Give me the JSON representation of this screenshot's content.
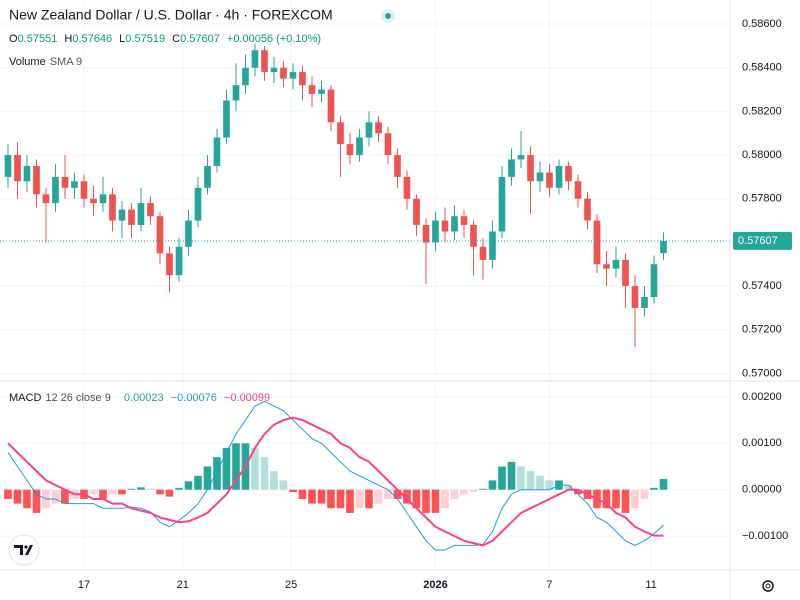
{
  "chart_data": {
    "type": "candlestick",
    "title": "New Zealand Dollar / U.S. Dollar · 4h · FOREXCOM",
    "ohlc_letters": [
      "O",
      "H",
      "L",
      "C"
    ],
    "change": "+0.00056 (+0.10%)",
    "volume_label": "Volume",
    "volume_sma": "SMA 9",
    "up_color": "#26a69a",
    "down_color": "#ef5350",
    "grid": true,
    "open": [
      0.579,
      0.58,
      0.5788,
      0.5795,
      0.5782,
      0.5778,
      0.579,
      0.5785,
      0.5788,
      0.578,
      0.5778,
      0.5782,
      0.577,
      0.5775,
      0.5768,
      0.5778,
      0.5772,
      0.5755,
      0.5745,
      0.5758,
      0.577,
      0.5785,
      0.5795,
      0.5808,
      0.5825,
      0.5832,
      0.584,
      0.5848,
      0.5838,
      0.584,
      0.5835,
      0.5838,
      0.5832,
      0.5828,
      0.583,
      0.5815,
      0.5805,
      0.58,
      0.5808,
      0.5815,
      0.581,
      0.58,
      0.579,
      0.578,
      0.5768,
      0.576,
      0.577,
      0.5765,
      0.5772,
      0.5768,
      0.5758,
      0.5752,
      0.5765,
      0.579,
      0.5798,
      0.58,
      0.5788,
      0.5792,
      0.5785,
      0.5795,
      0.5788,
      0.578,
      0.577,
      0.575,
      0.5748,
      0.5752,
      0.574,
      0.573,
      0.5735,
      0.57551
    ],
    "high": [
      0.5805,
      0.5806,
      0.58,
      0.5798,
      0.5785,
      0.5796,
      0.58,
      0.5792,
      0.5791,
      0.5786,
      0.579,
      0.5785,
      0.5779,
      0.5778,
      0.5785,
      0.5781,
      0.5774,
      0.5758,
      0.5762,
      0.5775,
      0.579,
      0.58,
      0.5812,
      0.583,
      0.5842,
      0.5846,
      0.5851,
      0.585,
      0.5845,
      0.5843,
      0.5842,
      0.5841,
      0.5836,
      0.5834,
      0.5832,
      0.5818,
      0.581,
      0.5812,
      0.582,
      0.5818,
      0.5813,
      0.5803,
      0.5793,
      0.5782,
      0.5771,
      0.5774,
      0.5776,
      0.5777,
      0.5775,
      0.577,
      0.5762,
      0.577,
      0.5795,
      0.5803,
      0.5811,
      0.5804,
      0.5797,
      0.5796,
      0.5798,
      0.5797,
      0.5791,
      0.5783,
      0.5773,
      0.5756,
      0.5758,
      0.5755,
      0.5745,
      0.574,
      0.5754,
      0.57646
    ],
    "low": [
      0.5785,
      0.578,
      0.5783,
      0.5776,
      0.576,
      0.5774,
      0.578,
      0.578,
      0.5776,
      0.5772,
      0.5774,
      0.5765,
      0.5762,
      0.5762,
      0.5765,
      0.5768,
      0.575,
      0.5737,
      0.5742,
      0.5754,
      0.5767,
      0.5782,
      0.5792,
      0.5805,
      0.582,
      0.5828,
      0.5836,
      0.5834,
      0.5833,
      0.5831,
      0.583,
      0.5825,
      0.5822,
      0.5824,
      0.5811,
      0.579,
      0.5796,
      0.5797,
      0.5804,
      0.5806,
      0.5796,
      0.5785,
      0.5775,
      0.5763,
      0.5741,
      0.5756,
      0.576,
      0.5761,
      0.5762,
      0.5745,
      0.5743,
      0.5748,
      0.5762,
      0.5786,
      0.5794,
      0.5773,
      0.5783,
      0.5781,
      0.5782,
      0.5784,
      0.5776,
      0.5766,
      0.5746,
      0.574,
      0.5744,
      0.573,
      0.5712,
      0.5726,
      0.5732,
      0.57519
    ],
    "close": [
      0.58,
      0.5788,
      0.5795,
      0.5782,
      0.5778,
      0.579,
      0.5785,
      0.5788,
      0.578,
      0.5778,
      0.5782,
      0.577,
      0.5775,
      0.5768,
      0.5778,
      0.5772,
      0.5755,
      0.5745,
      0.5758,
      0.577,
      0.5785,
      0.5795,
      0.5808,
      0.5825,
      0.5832,
      0.584,
      0.5848,
      0.5838,
      0.584,
      0.5835,
      0.5838,
      0.5832,
      0.5828,
      0.583,
      0.5815,
      0.5805,
      0.58,
      0.5808,
      0.5815,
      0.581,
      0.58,
      0.579,
      0.578,
      0.5768,
      0.576,
      0.577,
      0.5765,
      0.5772,
      0.5768,
      0.5758,
      0.5752,
      0.5765,
      0.579,
      0.5798,
      0.58,
      0.5788,
      0.5792,
      0.5785,
      0.5795,
      0.5788,
      0.578,
      0.577,
      0.575,
      0.5748,
      0.5752,
      0.574,
      0.573,
      0.5735,
      0.575,
      0.57607
    ],
    "ylim": [
      0.5697,
      0.5871
    ],
    "yticks": [
      {
        "value": 0.586,
        "label": "0.58600"
      },
      {
        "value": 0.584,
        "label": "0.58400"
      },
      {
        "value": 0.582,
        "label": "0.58200"
      },
      {
        "value": 0.58,
        "label": "0.58000"
      },
      {
        "value": 0.578,
        "label": "0.57800"
      },
      {
        "value": 0.576,
        "label": "0.57600"
      },
      {
        "value": 0.574,
        "label": "0.57400"
      },
      {
        "value": 0.572,
        "label": "0.57200"
      },
      {
        "value": 0.57,
        "label": "0.57000"
      }
    ],
    "xlim": [
      -0.84,
      76
    ],
    "xticks": [
      {
        "value": 8,
        "label": "17"
      },
      {
        "value": 18.4,
        "label": "21"
      },
      {
        "value": 29.8,
        "label": "25"
      },
      {
        "value": 45,
        "label": "2026"
      },
      {
        "value": 57,
        "label": "7"
      },
      {
        "value": 67.7,
        "label": "11"
      }
    ],
    "macd": {
      "label": "MACD",
      "params": "12 26 close 9",
      "legend": [
        "0.00023",
        "−0.00076",
        "−0.00099"
      ],
      "macd_color": "#2196f3",
      "signal_color": "#ff4081",
      "hist_colors": [
        "#26a69a",
        "#b2dfdb",
        "#ff5252",
        "#ffcdd2"
      ],
      "ylim": [
        -0.00173,
        0.00232
      ],
      "yticks": [
        {
          "value": 0.002,
          "label": "0.00200"
        },
        {
          "value": 0.001,
          "label": "0.00100"
        },
        {
          "value": 0,
          "label": "0.00000"
        },
        {
          "value": -0.001,
          "label": "−0.00100"
        }
      ],
      "macd_values": [
        0.0008,
        0.0005,
        0.0002,
        -0.0001,
        -0.0002,
        -0.0002,
        -0.0003,
        -0.0003,
        -0.0003,
        -0.0003,
        -0.0004,
        -0.0004,
        -0.0004,
        -0.00038,
        -0.0004,
        -0.00048,
        -0.0007,
        -0.0008,
        -0.00066,
        -0.0005,
        -0.0003,
        0,
        0.0004,
        0.0008,
        0.0012,
        0.0015,
        0.0018,
        0.0019,
        0.0018,
        0.0017,
        0.0015,
        0.0013,
        0.0011,
        0.001,
        0.0008,
        0.0006,
        0.0004,
        0.0003,
        0.0002,
        0.0001,
        0,
        -0.0002,
        -0.0005,
        -0.0008,
        -0.0011,
        -0.0013,
        -0.0013,
        -0.0012,
        -0.0012,
        -0.0012,
        -0.00118,
        -0.0009,
        -0.0004,
        -0.0001,
        0,
        0,
        0,
        0,
        0.0001,
        0.0001,
        -0.0001,
        -0.0003,
        -0.0006,
        -0.0007,
        -0.0009,
        -0.0011,
        -0.0012,
        -0.0011,
        -0.00095,
        -0.00076
      ],
      "signal_values": [
        0.001,
        0.0008,
        0.0006,
        0.0004,
        0.0002,
        0.0001,
        0,
        -0.0001,
        -0.0001,
        -0.0002,
        -0.0002,
        -0.0003,
        -0.0003,
        -0.0004,
        -0.00045,
        -0.0005,
        -0.0006,
        -0.00065,
        -0.0007,
        -0.00068,
        -0.0006,
        -0.0005,
        -0.0003,
        -0.0001,
        0.0002,
        0.0005,
        0.0009,
        0.0012,
        0.0014,
        0.0015,
        0.00155,
        0.0015,
        0.0014,
        0.0013,
        0.0012,
        0.001,
        0.0009,
        0.0007,
        0.0006,
        0.0004,
        0.0002,
        0,
        -0.0002,
        -0.0004,
        -0.0006,
        -0.0008,
        -0.0009,
        -0.001,
        -0.0011,
        -0.00115,
        -0.0012,
        -0.0011,
        -0.0009,
        -0.0007,
        -0.0005,
        -0.0004,
        -0.0003,
        -0.0002,
        -0.0001,
        0,
        0,
        -0.0001,
        -0.0002,
        -0.0003,
        -0.0005,
        -0.0006,
        -0.0008,
        -0.0009,
        -0.00099,
        -0.00099
      ],
      "histogram": [
        -0.0002,
        -0.0003,
        -0.0004,
        -0.0005,
        -0.0004,
        -0.0003,
        -0.0003,
        -0.0002,
        -0.0002,
        -0.0001,
        -0.0002,
        -0.0001,
        -0.0001,
        2e-05,
        5e-05,
        2e-05,
        -0.0001,
        -0.00015,
        4e-05,
        0.00018,
        0.0003,
        0.0005,
        0.0007,
        0.0009,
        0.001,
        0.001,
        0.0009,
        0.0007,
        0.0004,
        0.0002,
        -5e-05,
        -0.0002,
        -0.0003,
        -0.0003,
        -0.0004,
        -0.0004,
        -0.0005,
        -0.0004,
        -0.0004,
        -0.0003,
        -0.0002,
        -0.0002,
        -0.0003,
        -0.0004,
        -0.0005,
        -0.0005,
        -0.0004,
        -0.0002,
        -0.0001,
        -5e-05,
        2e-05,
        0.0002,
        0.0005,
        0.0006,
        0.0005,
        0.0004,
        0.0003,
        0.0002,
        0.0002,
        0.0001,
        -0.0001,
        -0.0002,
        -0.0004,
        -0.0004,
        -0.0004,
        -0.0005,
        -0.0004,
        -0.0002,
        4e-05,
        0.00023
      ]
    }
  }
}
